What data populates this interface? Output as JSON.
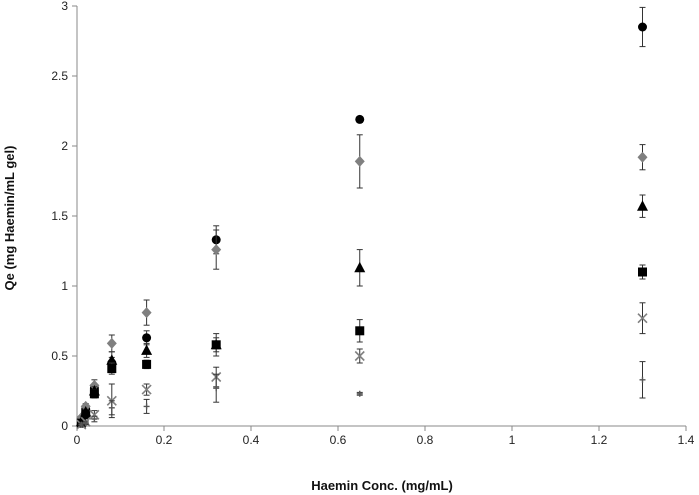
{
  "chart_data": {
    "type": "scatter",
    "title": "",
    "xlabel": "Haemin Conc. (mg/mL)",
    "ylabel": "Qe (mg Haemin/mL gel)",
    "xlim": [
      0,
      1.4
    ],
    "ylim": [
      0,
      3
    ],
    "x_ticks": [
      "0",
      "0.2",
      "0.4",
      "0.6",
      "0.8",
      "1",
      "1.2",
      "1.4"
    ],
    "y_ticks": [
      "0",
      "0.5",
      "1",
      "1.5",
      "2",
      "2.5",
      "3"
    ],
    "grid": false,
    "legend": "none",
    "series": [
      {
        "marker": "circle",
        "color": "#000000",
        "x": [
          0.01,
          0.02,
          0.04,
          0.08,
          0.16,
          0.32,
          0.65,
          1.3
        ],
        "y": [
          0.05,
          0.12,
          0.27,
          0.45,
          0.63,
          1.33,
          2.19,
          2.85
        ],
        "err": [
          0.01,
          0.02,
          0.03,
          0.04,
          0.05,
          0.1,
          0,
          0.14
        ]
      },
      {
        "marker": "diamond",
        "color": "#808080",
        "x": [
          0.01,
          0.02,
          0.04,
          0.08,
          0.16,
          0.32,
          0.65,
          1.3
        ],
        "y": [
          0.06,
          0.14,
          0.29,
          0.59,
          0.81,
          1.26,
          1.89,
          1.92
        ],
        "err": [
          0.01,
          0.02,
          0.04,
          0.06,
          0.09,
          0.14,
          0.19,
          0.09
        ]
      },
      {
        "marker": "triangle",
        "color": "#000000",
        "x": [
          0.01,
          0.02,
          0.04,
          0.08,
          0.16,
          0.32,
          0.65,
          1.3
        ],
        "y": [
          0.03,
          0.1,
          0.25,
          0.47,
          0.54,
          0.58,
          1.13,
          1.57
        ],
        "err": [
          0.01,
          0.02,
          0.03,
          0.06,
          0.05,
          0.05,
          0.13,
          0.08
        ]
      },
      {
        "marker": "square",
        "color": "#000000",
        "x": [
          0.01,
          0.02,
          0.04,
          0.08,
          0.16,
          0.32,
          0.65,
          1.3
        ],
        "y": [
          0.02,
          0.08,
          0.23,
          0.41,
          0.44,
          0.58,
          0.68,
          1.1
        ],
        "err": [
          0.01,
          0.02,
          0.03,
          0.04,
          0.03,
          0.08,
          0.08,
          0.05
        ]
      },
      {
        "marker": "x",
        "color": "#808080",
        "x": [
          0.01,
          0.02,
          0.04,
          0.08,
          0.16,
          0.32,
          0.65,
          1.3
        ],
        "y": [
          0.01,
          0.03,
          0.08,
          0.18,
          0.26,
          0.35,
          0.5,
          0.77
        ],
        "err": [
          0.01,
          0.01,
          0.03,
          0.12,
          0.04,
          0.07,
          0.05,
          0.11
        ]
      },
      {
        "marker": "plus",
        "color": "#555555",
        "x": [
          0.01,
          0.02,
          0.04,
          0.08,
          0.16,
          0.32,
          0.65,
          1.3
        ],
        "y": [
          0.01,
          0.02,
          0.05,
          0.13,
          0.14,
          0.27,
          0.23,
          0.33
        ],
        "err": [
          0.01,
          0.01,
          0.02,
          0.05,
          0.05,
          0.1,
          0.01,
          0.13
        ]
      }
    ]
  }
}
